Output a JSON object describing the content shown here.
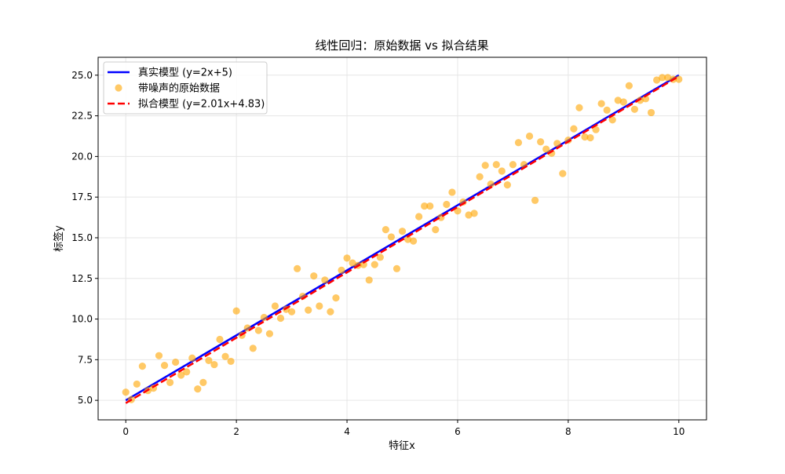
{
  "chart_data": {
    "type": "scatter",
    "title": "线性回归：原始数据 vs 拟合结果",
    "xlabel": "特征x",
    "ylabel": "标签y",
    "xlim": [
      -0.5,
      10.5
    ],
    "ylim": [
      3.8,
      26.1
    ],
    "xticks": [
      0,
      2,
      4,
      6,
      8,
      10
    ],
    "xtick_labels": [
      "0",
      "2",
      "4",
      "6",
      "8",
      "10"
    ],
    "yticks": [
      5.0,
      7.5,
      10.0,
      12.5,
      15.0,
      17.5,
      20.0,
      22.5,
      25.0
    ],
    "ytick_labels": [
      "5.0",
      "7.5",
      "10.0",
      "12.5",
      "15.0",
      "17.5",
      "20.0",
      "22.5",
      "25.0"
    ],
    "grid": true,
    "legend_position": "upper-left",
    "series": [
      {
        "name": "真实模型 (y=2x+5)",
        "kind": "line",
        "style": "solid",
        "color": "#0000ff",
        "x": [
          0,
          10
        ],
        "y": [
          5,
          25
        ]
      },
      {
        "name": "带噪声的原始数据",
        "kind": "scatter",
        "color": "#ffa500",
        "x": [
          0.0,
          0.1,
          0.2,
          0.3,
          0.4,
          0.5,
          0.6,
          0.7,
          0.8,
          0.9,
          1.0,
          1.1,
          1.2,
          1.3,
          1.4,
          1.5,
          1.6,
          1.7,
          1.8,
          1.9,
          2.0,
          2.1,
          2.2,
          2.3,
          2.4,
          2.5,
          2.6,
          2.7,
          2.8,
          2.9,
          3.0,
          3.1,
          3.2,
          3.3,
          3.4,
          3.5,
          3.6,
          3.7,
          3.8,
          3.9,
          4.0,
          4.1,
          4.2,
          4.3,
          4.4,
          4.5,
          4.6,
          4.7,
          4.8,
          4.9,
          5.0,
          5.1,
          5.2,
          5.3,
          5.4,
          5.5,
          5.6,
          5.7,
          5.8,
          5.9,
          6.0,
          6.1,
          6.2,
          6.3,
          6.4,
          6.5,
          6.6,
          6.7,
          6.8,
          6.9,
          7.0,
          7.1,
          7.2,
          7.3,
          7.4,
          7.5,
          7.6,
          7.7,
          7.8,
          7.9,
          8.0,
          8.1,
          8.2,
          8.3,
          8.4,
          8.5,
          8.6,
          8.7,
          8.8,
          8.9,
          9.0,
          9.1,
          9.2,
          9.3,
          9.4,
          9.5,
          9.6,
          9.7,
          9.8,
          9.9,
          10.0
        ],
        "y": [
          5.5,
          5.05,
          6.0,
          7.1,
          5.6,
          5.75,
          7.75,
          7.15,
          6.1,
          7.35,
          6.55,
          6.75,
          7.6,
          5.7,
          6.1,
          7.45,
          7.2,
          8.75,
          7.7,
          7.4,
          10.5,
          9.0,
          9.45,
          8.2,
          9.3,
          10.1,
          9.1,
          10.8,
          10.05,
          10.6,
          10.45,
          13.1,
          11.4,
          10.55,
          12.65,
          10.8,
          12.4,
          10.45,
          11.3,
          13.0,
          13.75,
          13.45,
          13.3,
          13.35,
          12.4,
          13.35,
          13.8,
          15.5,
          15.05,
          13.1,
          15.4,
          14.9,
          14.8,
          16.3,
          16.95,
          16.95,
          15.5,
          16.25,
          17.05,
          17.8,
          16.65,
          17.2,
          16.4,
          16.5,
          18.75,
          19.45,
          18.3,
          19.5,
          19.1,
          18.25,
          19.5,
          20.85,
          19.5,
          21.25,
          17.3,
          20.9,
          20.45,
          20.2,
          20.8,
          18.95,
          21.0,
          21.7,
          23.0,
          21.2,
          21.15,
          21.65,
          23.25,
          22.85,
          22.25,
          23.45,
          23.35,
          24.35,
          22.9,
          23.45,
          23.55,
          22.7,
          24.7,
          24.85,
          24.85,
          24.75,
          24.75
        ]
      },
      {
        "name": "拟合模型 (y=2.01x+4.83)",
        "kind": "line",
        "style": "dashed",
        "color": "#ff0000",
        "x": [
          0,
          10
        ],
        "y": [
          4.83,
          24.93
        ]
      }
    ]
  },
  "colors": {
    "grid": "#e6e6e6",
    "axes": "#000000",
    "legend_border": "#cccccc"
  }
}
